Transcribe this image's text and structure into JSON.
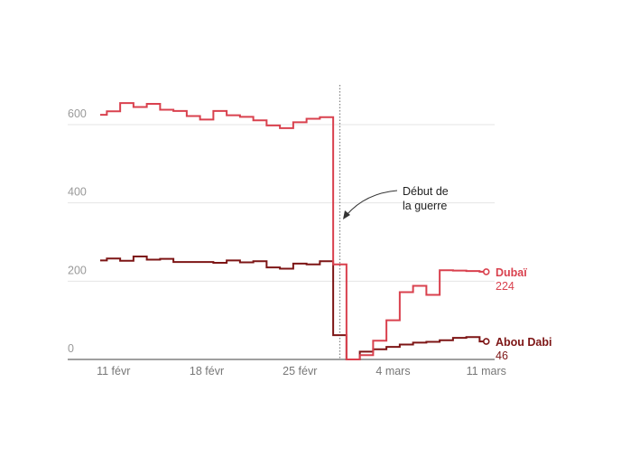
{
  "chart_data": {
    "type": "line",
    "step": true,
    "x": [
      "10 févr",
      "11 févr",
      "12 févr",
      "13 févr",
      "14 févr",
      "15 févr",
      "16 févr",
      "17 févr",
      "18 févr",
      "19 févr",
      "20 févr",
      "21 févr",
      "22 févr",
      "23 févr",
      "24 févr",
      "25 févr",
      "26 févr",
      "27 févr",
      "28 févr",
      "1 mars",
      "2 mars",
      "3 mars",
      "4 mars",
      "5 mars",
      "6 mars",
      "7 mars",
      "8 mars",
      "9 mars",
      "10 mars",
      "11 mars"
    ],
    "series": [
      {
        "name": "Dubaï",
        "color": "#d9414e",
        "end_label": "224",
        "values": [
          625,
          634,
          655,
          645,
          653,
          638,
          635,
          622,
          613,
          635,
          624,
          620,
          611,
          598,
          591,
          606,
          615,
          619,
          243,
          0,
          11,
          48,
          100,
          172,
          188,
          165,
          228,
          227,
          226,
          224
        ]
      },
      {
        "name": "Abou Dabi",
        "color": "#7d1515",
        "end_label": "46",
        "values": [
          253,
          258,
          252,
          263,
          255,
          257,
          249,
          249,
          249,
          247,
          253,
          248,
          251,
          235,
          232,
          245,
          243,
          251,
          62,
          0,
          20,
          26,
          32,
          38,
          43,
          45,
          49,
          55,
          57,
          46
        ]
      }
    ],
    "ylim": [
      0,
      700
    ],
    "yticks": [
      "0",
      "200",
      "400",
      "600"
    ],
    "ytick_values": [
      0,
      200,
      400,
      600
    ],
    "xticks": [
      {
        "label": "11 févr",
        "at": "11 févr"
      },
      {
        "label": "18 févr",
        "at": "18 févr"
      },
      {
        "label": "25 févr",
        "at": "25 févr"
      },
      {
        "label": "4 mars",
        "at": "4 mars"
      },
      {
        "label": "11 mars",
        "at": "11 mars"
      }
    ],
    "grid": true,
    "annotation": {
      "at": "28 févr",
      "line1": "Début de",
      "line2": "la guerre"
    }
  }
}
